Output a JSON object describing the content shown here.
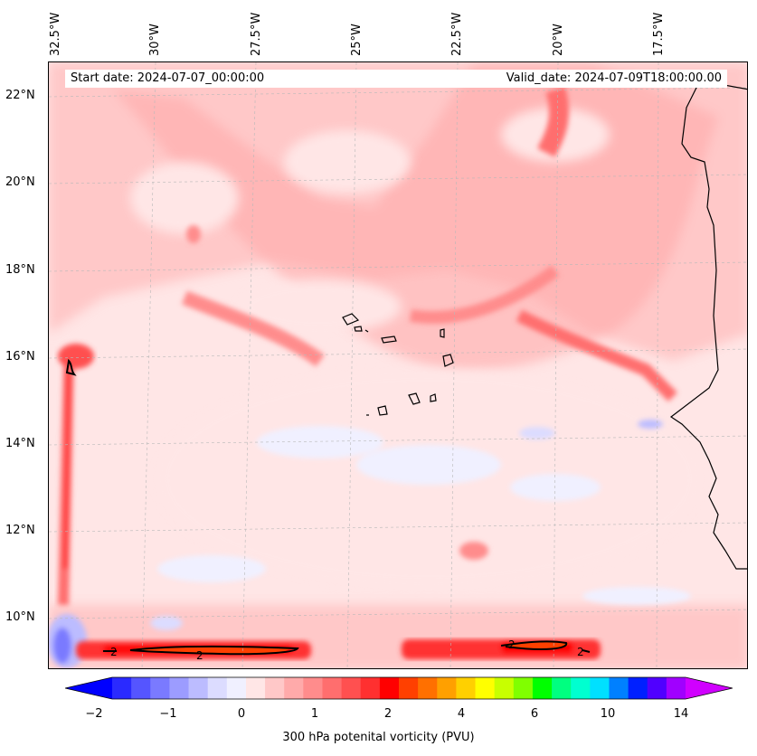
{
  "map": {
    "start_date_text": "Start date: 2024-07-07_00:00:00",
    "valid_date_text": "Valid_date: 2024-07-09T18:00:00.00",
    "lon_labels": [
      "32.5°W",
      "30°W",
      "27.5°W",
      "25°W",
      "22.5°W",
      "20°W",
      "17.5°W"
    ],
    "lat_labels": [
      "22°N",
      "20°N",
      "18°N",
      "16°N",
      "14°N",
      "12°N",
      "10°N"
    ],
    "contour_label": "2"
  },
  "colorbar": {
    "label": "300 hPa potenital vorticity (PVU)",
    "ticks": [
      "−2",
      "−1",
      "0",
      "1",
      "2",
      "4",
      "6",
      "10",
      "14"
    ],
    "colors": [
      "#0000ff",
      "#2a2aff",
      "#5555ff",
      "#7a7aff",
      "#9c9cff",
      "#bcbcff",
      "#dcdcff",
      "#f0f0ff",
      "#ffe6e6",
      "#ffc8c8",
      "#ffaaaa",
      "#ff8c8c",
      "#ff6e6e",
      "#ff5050",
      "#ff3030",
      "#ff0000",
      "#ff4000",
      "#ff7000",
      "#ffa000",
      "#ffd000",
      "#ffff00",
      "#c8ff00",
      "#80ff00",
      "#00ff00",
      "#00ff80",
      "#00ffd0",
      "#00e0ff",
      "#0080ff",
      "#0020ff",
      "#5000ff",
      "#a000ff",
      "#d000ff"
    ]
  }
}
